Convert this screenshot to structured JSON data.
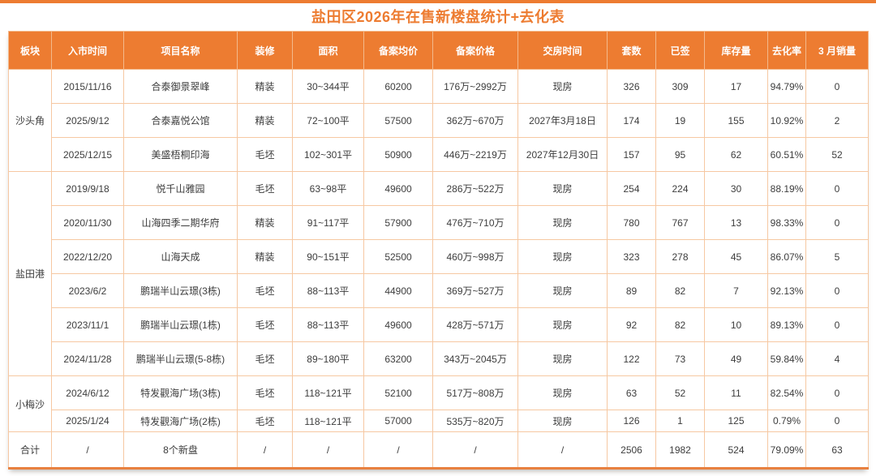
{
  "page": {
    "accent_color": "#ed7c31",
    "border_color": "#f6c8a2",
    "header_text_color": "#ffffff",
    "body_text_color": "#3d3d3d"
  },
  "chart_data": {
    "type": "table",
    "title": "盐田区2026年在售新楼盘统计+去化表",
    "columns": [
      "板块",
      "入市时间",
      "项目名称",
      "装修",
      "面积",
      "备案均价",
      "备案价格",
      "交房时间",
      "套数",
      "已签",
      "库存量",
      "去化率",
      "3 月销量"
    ],
    "blocks": [
      {
        "name": "沙头角",
        "rows": [
          [
            "2015/11/16",
            "合泰御景翠峰",
            "精装",
            "30~344平",
            "60200",
            "176万~2992万",
            "现房",
            "326",
            "309",
            "17",
            "94.79%",
            "0"
          ],
          [
            "2025/9/12",
            "合泰嘉悦公馆",
            "精装",
            "72~100平",
            "57500",
            "362万~670万",
            "2027年3月18日",
            "174",
            "19",
            "155",
            "10.92%",
            "2"
          ],
          [
            "2025/12/15",
            "美盛梧桐印海",
            "毛坯",
            "102~301平",
            "50900",
            "446万~2219万",
            "2027年12月30日",
            "157",
            "95",
            "62",
            "60.51%",
            "52"
          ]
        ]
      },
      {
        "name": "盐田港",
        "rows": [
          [
            "2019/9/18",
            "悦千山雅园",
            "毛坯",
            "63~98平",
            "49600",
            "286万~522万",
            "现房",
            "254",
            "224",
            "30",
            "88.19%",
            "0"
          ],
          [
            "2020/11/30",
            "山海四季二期华府",
            "精装",
            "91~117平",
            "57900",
            "476万~710万",
            "现房",
            "780",
            "767",
            "13",
            "98.33%",
            "0"
          ],
          [
            "2022/12/20",
            "山海天成",
            "精装",
            "90~151平",
            "52500",
            "460万~998万",
            "现房",
            "323",
            "278",
            "45",
            "86.07%",
            "5"
          ],
          [
            "2023/6/2",
            "鹏瑞半山云璟(3栋)",
            "毛坯",
            "88~113平",
            "44900",
            "369万~527万",
            "现房",
            "89",
            "82",
            "7",
            "92.13%",
            "0"
          ],
          [
            "2023/11/1",
            "鹏瑞半山云璟(1栋)",
            "毛坯",
            "88~113平",
            "49600",
            "428万~571万",
            "现房",
            "92",
            "82",
            "10",
            "89.13%",
            "0"
          ],
          [
            "2024/11/28",
            "鹏瑞半山云璟(5-8栋)",
            "毛坯",
            "89~180平",
            "63200",
            "343万~2045万",
            "现房",
            "122",
            "73",
            "49",
            "59.84%",
            "4"
          ]
        ]
      },
      {
        "name": "小梅沙",
        "rows": [
          [
            "2024/6/12",
            "特发觀海广场(3栋)",
            "毛坯",
            "118~121平",
            "52100",
            "517万~808万",
            "现房",
            "63",
            "52",
            "11",
            "82.54%",
            "0"
          ],
          [
            "2025/1/24",
            "特发觀海广场(2栋)",
            "毛坯",
            "118~121平",
            "57000",
            "535万~820万",
            "现房",
            "126",
            "1",
            "125",
            "0.79%",
            "0"
          ]
        ]
      }
    ],
    "total_row": [
      "合计",
      "/",
      "8个新盘",
      "/",
      "/",
      "/",
      "/",
      "/",
      "2506",
      "1982",
      "524",
      "79.09%",
      "63"
    ]
  }
}
